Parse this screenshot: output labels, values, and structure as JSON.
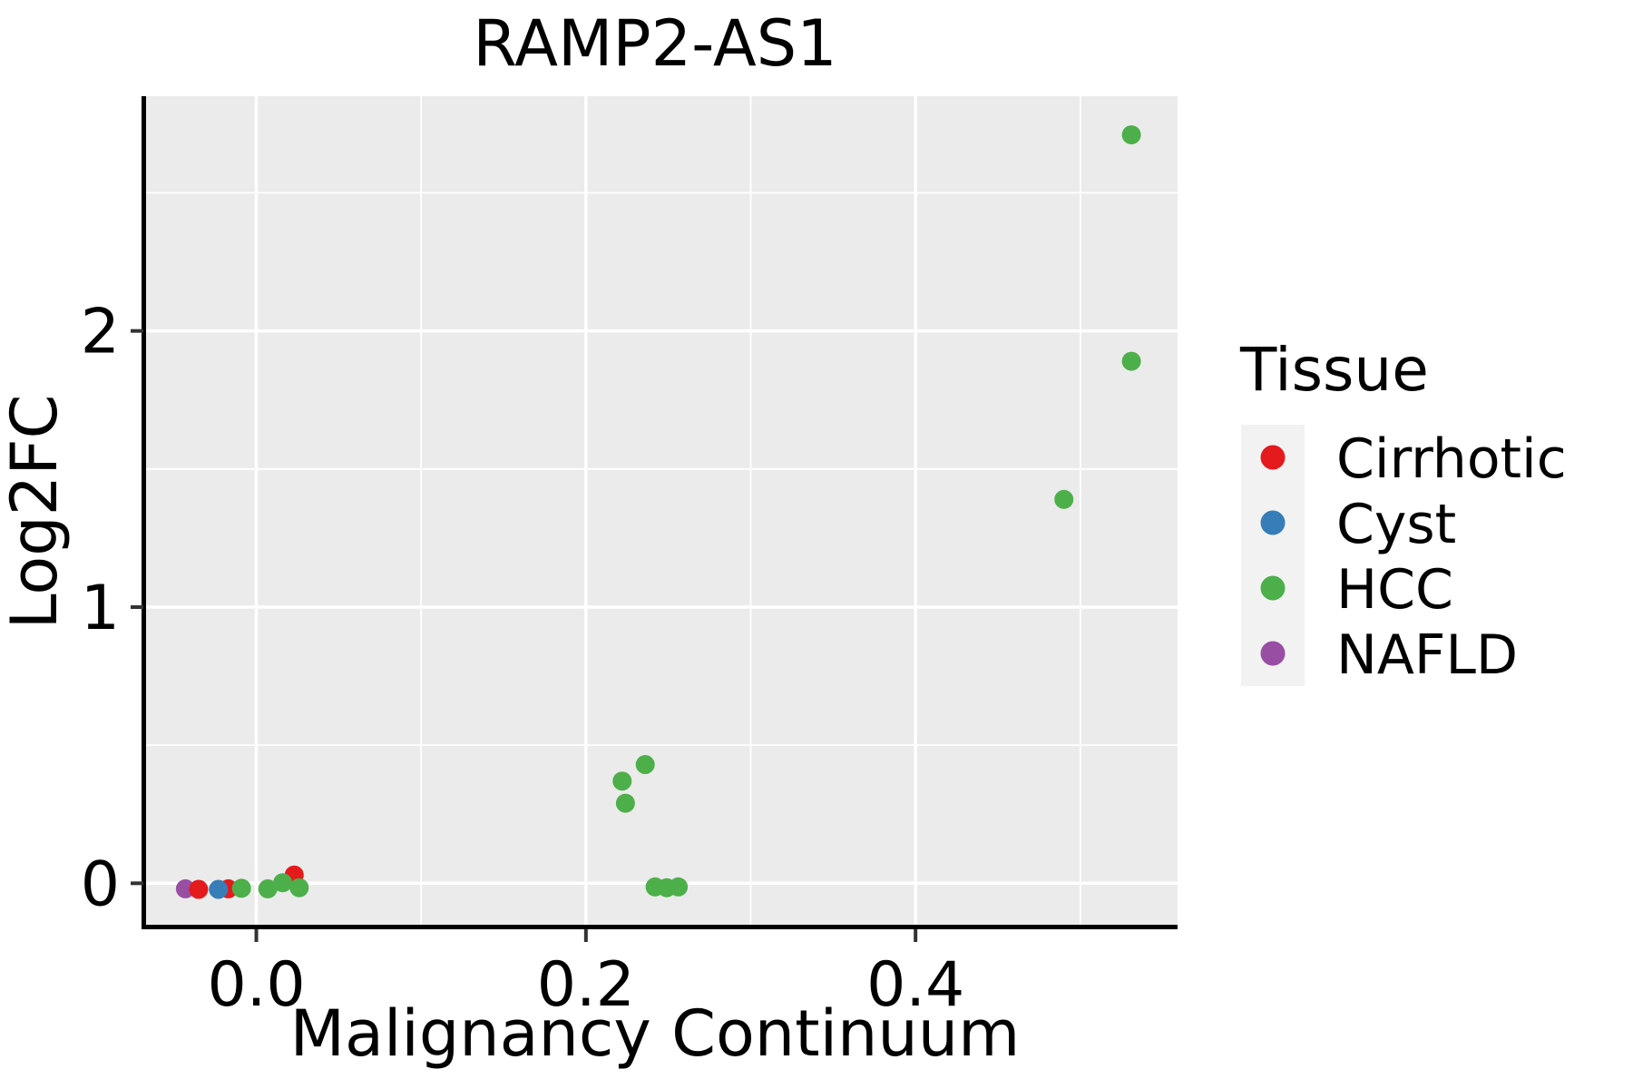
{
  "title": "RAMP2-AS1",
  "axes": {
    "x": {
      "label": "Malignancy Continuum",
      "ticks": [
        {
          "v": 0.0,
          "label": "0.0"
        },
        {
          "v": 0.2,
          "label": "0.2"
        },
        {
          "v": 0.4,
          "label": "0.4"
        }
      ],
      "minor": [
        0.1,
        0.3,
        0.5
      ],
      "range": [
        -0.068,
        0.559
      ]
    },
    "y": {
      "label": "Log2FC",
      "ticks": [
        {
          "v": 0,
          "label": "0"
        },
        {
          "v": 1,
          "label": "1"
        },
        {
          "v": 2,
          "label": "2"
        }
      ],
      "minor": [
        0.5,
        1.5,
        2.5
      ],
      "range": [
        -0.16,
        2.85
      ]
    }
  },
  "legend": {
    "title": "Tissue",
    "items": [
      {
        "label": "Cirrhotic",
        "color": "#E41A1C"
      },
      {
        "label": "Cyst",
        "color": "#377EB8"
      },
      {
        "label": "HCC",
        "color": "#4DAF4A"
      },
      {
        "label": "NAFLD",
        "color": "#984EA3"
      }
    ]
  },
  "colors": {
    "panel_bg": "#EBEBEB",
    "grid": "#FFFFFF",
    "axis_line": "#000000",
    "tick_mark": "#333333",
    "legend_key_bg": "#F2F2F2",
    "text": "#000000"
  },
  "chart_data": {
    "type": "scatter",
    "title": "RAMP2-AS1",
    "xlabel": "Malignancy Continuum",
    "ylabel": "Log2FC",
    "xlim": [
      -0.068,
      0.559
    ],
    "ylim": [
      -0.16,
      2.85
    ],
    "x_ticks": [
      0.0,
      0.2,
      0.4
    ],
    "y_ticks": [
      0,
      1,
      2
    ],
    "grid": true,
    "legend_position": "right",
    "series": [
      {
        "name": "Cirrhotic",
        "color": "#E41A1C",
        "points": [
          [
            -0.035,
            -0.022
          ],
          [
            -0.017,
            -0.02
          ],
          [
            0.023,
            0.03
          ]
        ]
      },
      {
        "name": "Cyst",
        "color": "#377EB8",
        "points": [
          [
            -0.023,
            -0.022
          ]
        ]
      },
      {
        "name": "HCC",
        "color": "#4DAF4A",
        "points": [
          [
            -0.009,
            -0.018
          ],
          [
            0.007,
            -0.02
          ],
          [
            0.016,
            0.002
          ],
          [
            0.026,
            -0.016
          ],
          [
            0.222,
            0.37
          ],
          [
            0.236,
            0.43
          ],
          [
            0.224,
            0.29
          ],
          [
            0.242,
            -0.013
          ],
          [
            0.249,
            -0.016
          ],
          [
            0.256,
            -0.013
          ],
          [
            0.49,
            1.39
          ],
          [
            0.531,
            1.89
          ],
          [
            0.531,
            2.71
          ]
        ]
      },
      {
        "name": "NAFLD",
        "color": "#984EA3",
        "points": [
          [
            -0.043,
            -0.02
          ]
        ]
      }
    ],
    "z_order": [
      "NAFLD",
      "Cirrhotic",
      "Cyst",
      "HCC"
    ]
  }
}
